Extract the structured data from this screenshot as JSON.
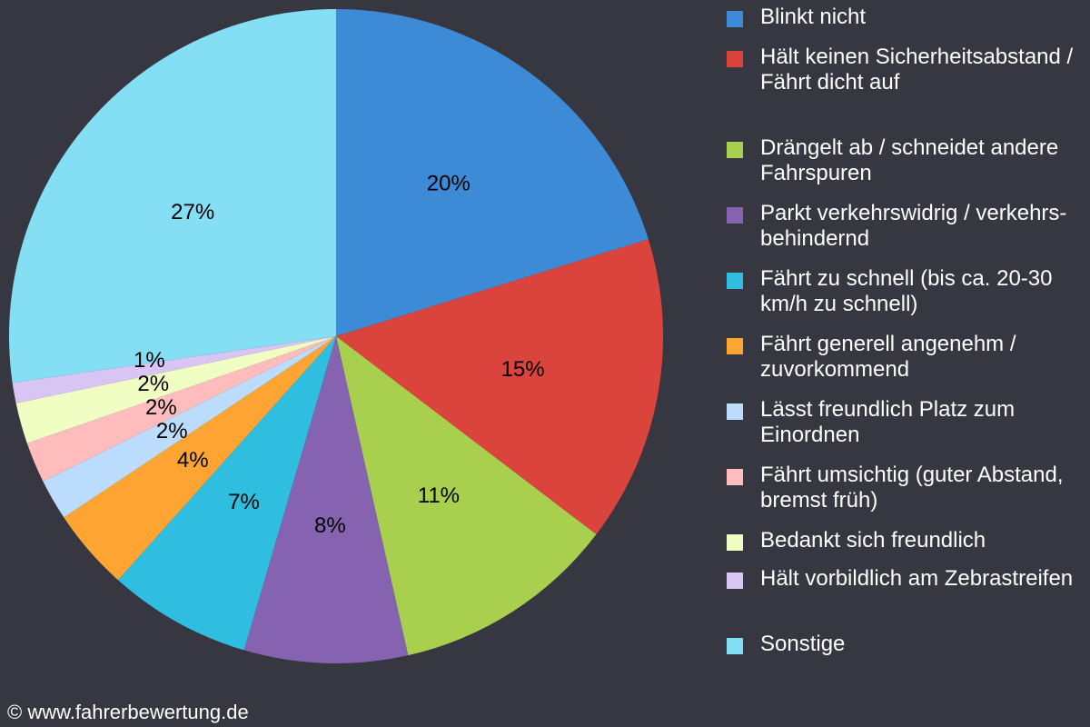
{
  "chart_data": {
    "type": "pie",
    "start_angle": "top",
    "direction": "clockwise",
    "legend_position": "right",
    "slices": [
      {
        "label": "Blinkt nicht",
        "value": 20,
        "value_label": "20%",
        "color": "#3d8ad7"
      },
      {
        "label": "Hält keinen Sicherheitsabstand / Fährt dicht auf",
        "value": 15,
        "value_label": "15%",
        "color": "#db443c"
      },
      {
        "label": "Drängelt ab / schneidet andere Fahrspuren",
        "value": 11,
        "value_label": "11%",
        "color": "#a8d04e"
      },
      {
        "label": "Parkt verkehrswidrig / verkehrs-behindernd",
        "value": 8,
        "value_label": "8%",
        "color": "#8563b0"
      },
      {
        "label": "Fährt zu schnell (bis ca. 20-30 km/h zu schnell)",
        "value": 7,
        "value_label": "7%",
        "color": "#2fbde0"
      },
      {
        "label": "Fährt generell angenehm / zuvorkommend",
        "value": 4,
        "value_label": "4%",
        "color": "#fea433"
      },
      {
        "label": "Lässt freundlich Platz zum Einordnen",
        "value": 2,
        "value_label": "2%",
        "color": "#bcdcfe"
      },
      {
        "label": "Fährt umsichtig (guter Abstand, bremst früh)",
        "value": 2,
        "value_label": "2%",
        "color": "#ffbcbc"
      },
      {
        "label": "Bedankt sich freundlich",
        "value": 2,
        "value_label": "2%",
        "color": "#f0fec4"
      },
      {
        "label": "Hält vorbildlich am Zebrastreifen",
        "value": 1,
        "value_label": "1%",
        "color": "#d8c5f4"
      },
      {
        "label": "Sonstige",
        "value": 27,
        "value_label": "27%",
        "color": "#84dff4"
      }
    ]
  },
  "footer": {
    "copyright": "© www.fahrerbewertung.de"
  }
}
